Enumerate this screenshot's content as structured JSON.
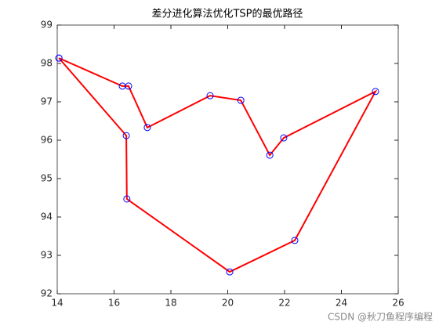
{
  "chart_data": {
    "type": "line",
    "title": "差分进化算法优化TSP的最优路径",
    "x": [
      14.06,
      16.29,
      16.51,
      17.17,
      19.38,
      20.46,
      21.48,
      21.97,
      25.2,
      22.36,
      20.07,
      16.45,
      16.43,
      14.06
    ],
    "y": [
      98.14,
      97.41,
      97.41,
      96.33,
      97.16,
      97.04,
      95.61,
      96.06,
      97.27,
      93.39,
      92.57,
      94.47,
      96.12,
      98.14
    ],
    "line_color": "#ff0000",
    "marker_color": "#0000ff",
    "marker": "circle",
    "xlim": [
      14,
      26
    ],
    "xticks": [
      14,
      16,
      18,
      20,
      22,
      24,
      26
    ],
    "ylim": [
      92,
      99
    ],
    "yticks": [
      92,
      93,
      94,
      95,
      96,
      97,
      98,
      99
    ],
    "grid": false,
    "box": true,
    "watermark": "CSDN @秋刀鱼程序编程"
  }
}
